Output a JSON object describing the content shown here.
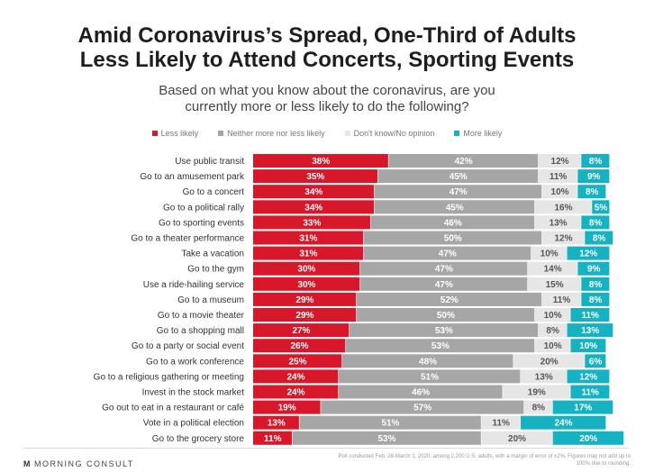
{
  "title_line1": "Amid Coronavirus’s Spread, One-Third of Adults",
  "title_line2": "Less Likely to Attend Concerts, Sporting Events",
  "subtitle_line1": "Based on what you know about the coronavirus, are you",
  "subtitle_line2": "currently more or less likely to do the following?",
  "brand": "MORNING CONSULT",
  "brand_mark": "M",
  "source_note": "Poll conducted Feb. 28-March 1, 2020, among 2,200 U.S. adults, with a margin of error of ±2%. Figures may not add up to 100% due to rounding.",
  "chart_data": {
    "type": "bar",
    "orientation": "horizontal",
    "stacked": true,
    "percent": true,
    "xlim": [
      0,
      100
    ],
    "legend_position": "top",
    "categories": [
      "Use public transit",
      "Go to an amusement park",
      "Go to a concert",
      "Go to a political rally",
      "Go to sporting events",
      "Go to a theater performance",
      "Take a vacation",
      "Go to the gym",
      "Use a ride-hailing service",
      "Go to a museum",
      "Go to a movie theater",
      "Go to a shopping mall",
      "Go to a party or social event",
      "Go to a work conference",
      "Go to a religious gathering or meeting",
      "Invest in the stock market",
      "Go out to eat in a restaurant or café",
      "Vote in a political election",
      "Go to the grocery store"
    ],
    "series": [
      {
        "name": "Less likely",
        "color": "#d7182a",
        "label_color": "#ffffff",
        "values": [
          38,
          35,
          34,
          34,
          33,
          31,
          31,
          30,
          30,
          29,
          29,
          27,
          26,
          25,
          24,
          24,
          19,
          13,
          11
        ]
      },
      {
        "name": "Neither more nor less likely",
        "color": "#a6a6a6",
        "label_color": "#ffffff",
        "values": [
          42,
          45,
          47,
          45,
          46,
          50,
          47,
          47,
          47,
          52,
          50,
          53,
          53,
          48,
          51,
          46,
          57,
          51,
          53
        ]
      },
      {
        "name": "Don't know/No opinion",
        "color": "#e6e6e6",
        "label_color": "#555555",
        "values": [
          12,
          11,
          10,
          16,
          13,
          12,
          10,
          14,
          15,
          11,
          10,
          8,
          10,
          20,
          13,
          19,
          8,
          11,
          20
        ]
      },
      {
        "name": "More likely",
        "color": "#17b2c2",
        "label_color": "#ffffff",
        "values": [
          8,
          9,
          8,
          5,
          8,
          8,
          12,
          9,
          8,
          8,
          11,
          13,
          10,
          6,
          12,
          11,
          17,
          24,
          20
        ]
      }
    ]
  }
}
